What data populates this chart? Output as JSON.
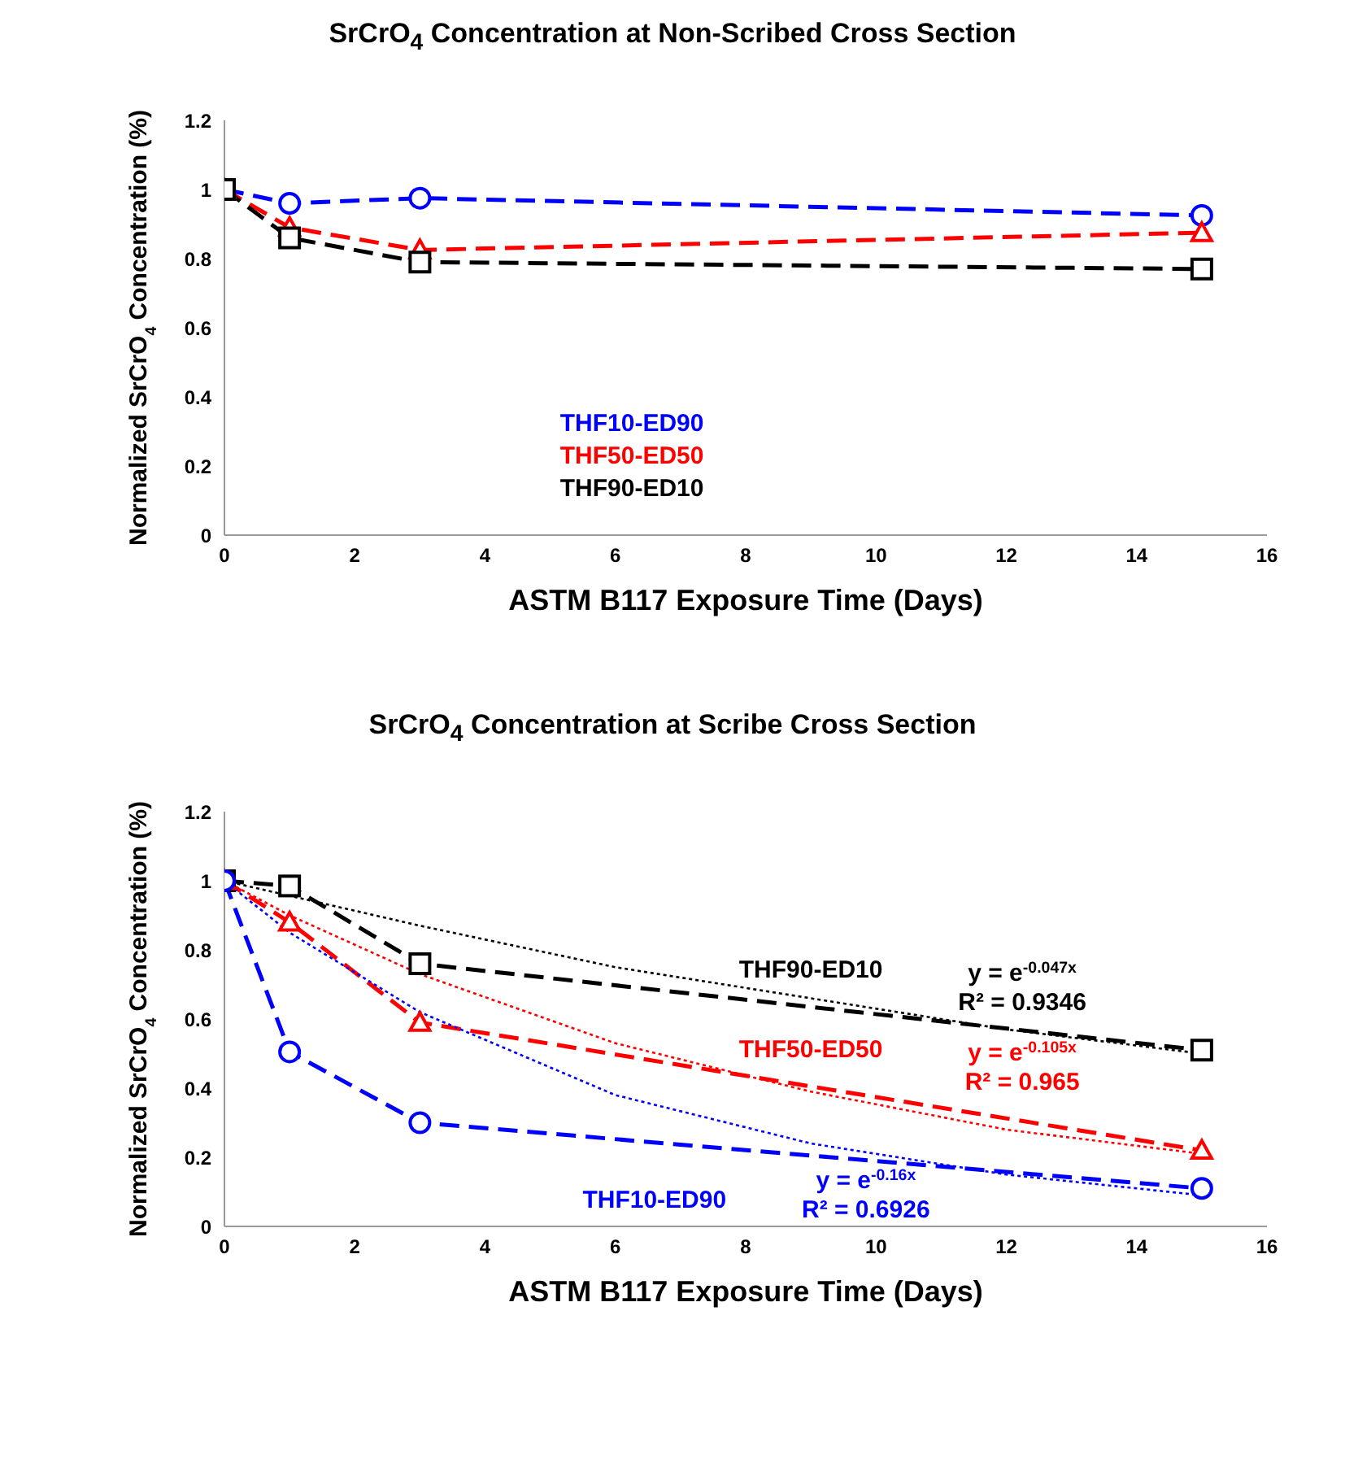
{
  "chart_data": [
    {
      "type": "line",
      "title": "SrCrO$_{4}$ Concentration at Non-Scribed Cross Section",
      "xlabel": "ASTM B117 Exposure Time (Days)",
      "ylabel": "Normalized SrCrO$_{4}$ Concentration (%)",
      "x": [
        0,
        1,
        3,
        15
      ],
      "xlim": [
        0,
        16
      ],
      "xticks": [
        0,
        2,
        4,
        6,
        8,
        10,
        12,
        14,
        16
      ],
      "ylim": [
        0,
        1.2
      ],
      "yticks": [
        0,
        0.2,
        0.4,
        0.6,
        0.8,
        1,
        1.2
      ],
      "grid": false,
      "legend": "bottom",
      "line_style": "dashed",
      "series": [
        {
          "name": "THF10-ED90",
          "color": "#0000ff",
          "marker": "circle",
          "values": [
            1,
            0.96,
            0.975,
            0.925
          ]
        },
        {
          "name": "THF50-ED50",
          "color": "#ff0000",
          "marker": "triangle",
          "values": [
            1,
            0.89,
            0.825,
            0.875
          ]
        },
        {
          "name": "THF90-ED10",
          "color": "#000000",
          "marker": "square",
          "values": [
            1,
            0.86,
            0.79,
            0.77
          ]
        }
      ]
    },
    {
      "type": "line",
      "title": "SrCrO$_{4}$ Concentration at Scribe Cross Section",
      "xlabel": "ASTM B117 Exposure Time (Days)",
      "ylabel": "Normalized SrCrO$_{4}$ Concentration (%)",
      "x": [
        0,
        1,
        3,
        15
      ],
      "xlim": [
        0,
        16
      ],
      "xticks": [
        0,
        2,
        4,
        6,
        8,
        10,
        12,
        14,
        16
      ],
      "ylim": [
        0,
        1.2
      ],
      "yticks": [
        0,
        0.2,
        0.4,
        0.6,
        0.8,
        1,
        1.2
      ],
      "grid": false,
      "legend": false,
      "line_style": "dashed",
      "series": [
        {
          "name": "THF90-ED10",
          "color": "#000000",
          "marker": "square",
          "values": [
            1,
            0.985,
            0.76,
            0.51
          ]
        },
        {
          "name": "THF50-ED50",
          "color": "#ff0000",
          "marker": "triangle",
          "values": [
            1,
            0.88,
            0.59,
            0.22
          ]
        },
        {
          "name": "THF10-ED90",
          "color": "#0000ff",
          "marker": "circle",
          "values": [
            1,
            0.505,
            0.3,
            0.11
          ]
        },
        {
          "type": "line",
          "color": "#000000",
          "marker": "none",
          "line_style": "dotted",
          "x": [
            0,
            3,
            6,
            9,
            12,
            15
          ],
          "values": [
            1,
            0.87,
            0.75,
            0.66,
            0.57,
            0.5
          ]
        },
        {
          "type": "line",
          "color": "#ff0000",
          "marker": "none",
          "line_style": "dotted",
          "x": [
            0,
            1,
            3,
            6,
            9,
            12,
            15
          ],
          "values": [
            1,
            0.9,
            0.73,
            0.53,
            0.39,
            0.28,
            0.21
          ]
        },
        {
          "type": "line",
          "color": "#0000ff",
          "marker": "none",
          "line_style": "dotted",
          "x": [
            0,
            1,
            3,
            6,
            9,
            12,
            15
          ],
          "values": [
            1,
            0.85,
            0.62,
            0.38,
            0.24,
            0.15,
            0.09
          ]
        }
      ],
      "annotations": [
        "y = e$^{-0.047x}$",
        "R² = 0.9346",
        "y = e$^{-0.105x}$",
        "R² = 0.965",
        "y = e$^{-0.16x}$",
        "R² = 0.6926"
      ]
    }
  ]
}
